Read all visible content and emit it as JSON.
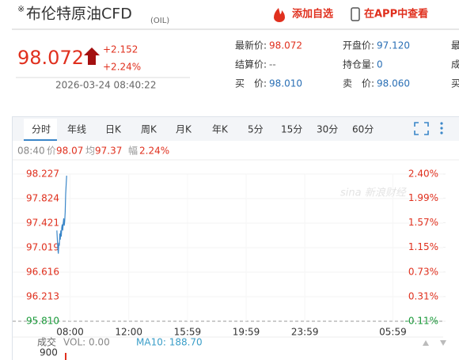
{
  "header": {
    "mark": "※",
    "title": "布伦特原油CFD",
    "code": "(OIL)",
    "actions": [
      "添加自选",
      "在APP中查看"
    ]
  },
  "quote": {
    "price": "98.072",
    "change": "+2.152",
    "change_pct": "+2.24%",
    "time": "2026-03-24 08:40:22"
  },
  "info": {
    "rows": [
      [
        {
          "label": "最新价:",
          "value": "98.072"
        },
        {
          "label": "开盘价:",
          "value": "97.120"
        },
        {
          "label": "最"
        }
      ],
      [
        {
          "label": "结算价:",
          "value": "--"
        },
        {
          "label": "持仓量:",
          "value": "0"
        },
        {
          "label": "成"
        }
      ],
      [
        {
          "label": "买　价:",
          "value": "98.010"
        },
        {
          "label": "卖　价:",
          "value": "98.060"
        },
        {
          "label": "买"
        }
      ]
    ]
  },
  "tabs": [
    "分时",
    "年线",
    "日K",
    "周K",
    "月K",
    "年K",
    "5分",
    "15分",
    "30分",
    "60分"
  ],
  "status": {
    "time": "08:40",
    "price_label": "价",
    "price": "98.07",
    "avg_label": "均",
    "avg": "97.37",
    "range_label": "幅",
    "range": "2.24%"
  },
  "chart_data": {
    "type": "line",
    "color": "#3a86c8",
    "x": [
      6,
      8,
      10,
      12,
      14,
      16,
      18,
      20,
      22,
      24,
      26,
      28,
      30,
      32,
      34,
      36,
      38,
      40,
      42,
      44,
      46
    ],
    "values": [
      97.3,
      97.15,
      97.0,
      96.92,
      97.1,
      97.05,
      97.25,
      97.15,
      97.3,
      97.2,
      97.35,
      97.4,
      97.3,
      97.42,
      97.5,
      97.38,
      97.45,
      97.6,
      97.9,
      98.05,
      98.2
    ],
    "xlim": [
      0,
      1440
    ],
    "xticks": [
      {
        "value": 60,
        "label": "08:00"
      },
      {
        "value": 300,
        "label": "12:00"
      },
      {
        "value": 540,
        "label": "15:59"
      },
      {
        "value": 780,
        "label": "19:59"
      },
      {
        "value": 1020,
        "label": "23:59"
      },
      {
        "value": 1380,
        "label": "05:59"
      }
    ],
    "ylim": [
      95.81,
      98.227
    ],
    "yticks": [
      98.227,
      97.824,
      97.421,
      97.019,
      96.616,
      96.213,
      {
        "value": 95.81,
        "label": "95.810"
      }
    ],
    "y2lim": [
      -0.11,
      2.4
    ],
    "y2ticks": [
      {
        "value": 2.4,
        "label": "2.40%"
      },
      {
        "value": 1.99,
        "label": "1.99%"
      },
      {
        "value": 1.57,
        "label": "1.57%"
      },
      {
        "value": 1.15,
        "label": "1.15%"
      },
      {
        "value": 0.73,
        "label": "0.73%"
      },
      {
        "value": 0.31,
        "label": "0.31%"
      },
      {
        "value": -0.11,
        "label": "-0.11%"
      }
    ],
    "watermark": "sina 新浪财经"
  },
  "volume": {
    "label": "成交",
    "vol": "VOL: 0.00",
    "ma10": "MA10: 188.70",
    "ytick": "900"
  }
}
